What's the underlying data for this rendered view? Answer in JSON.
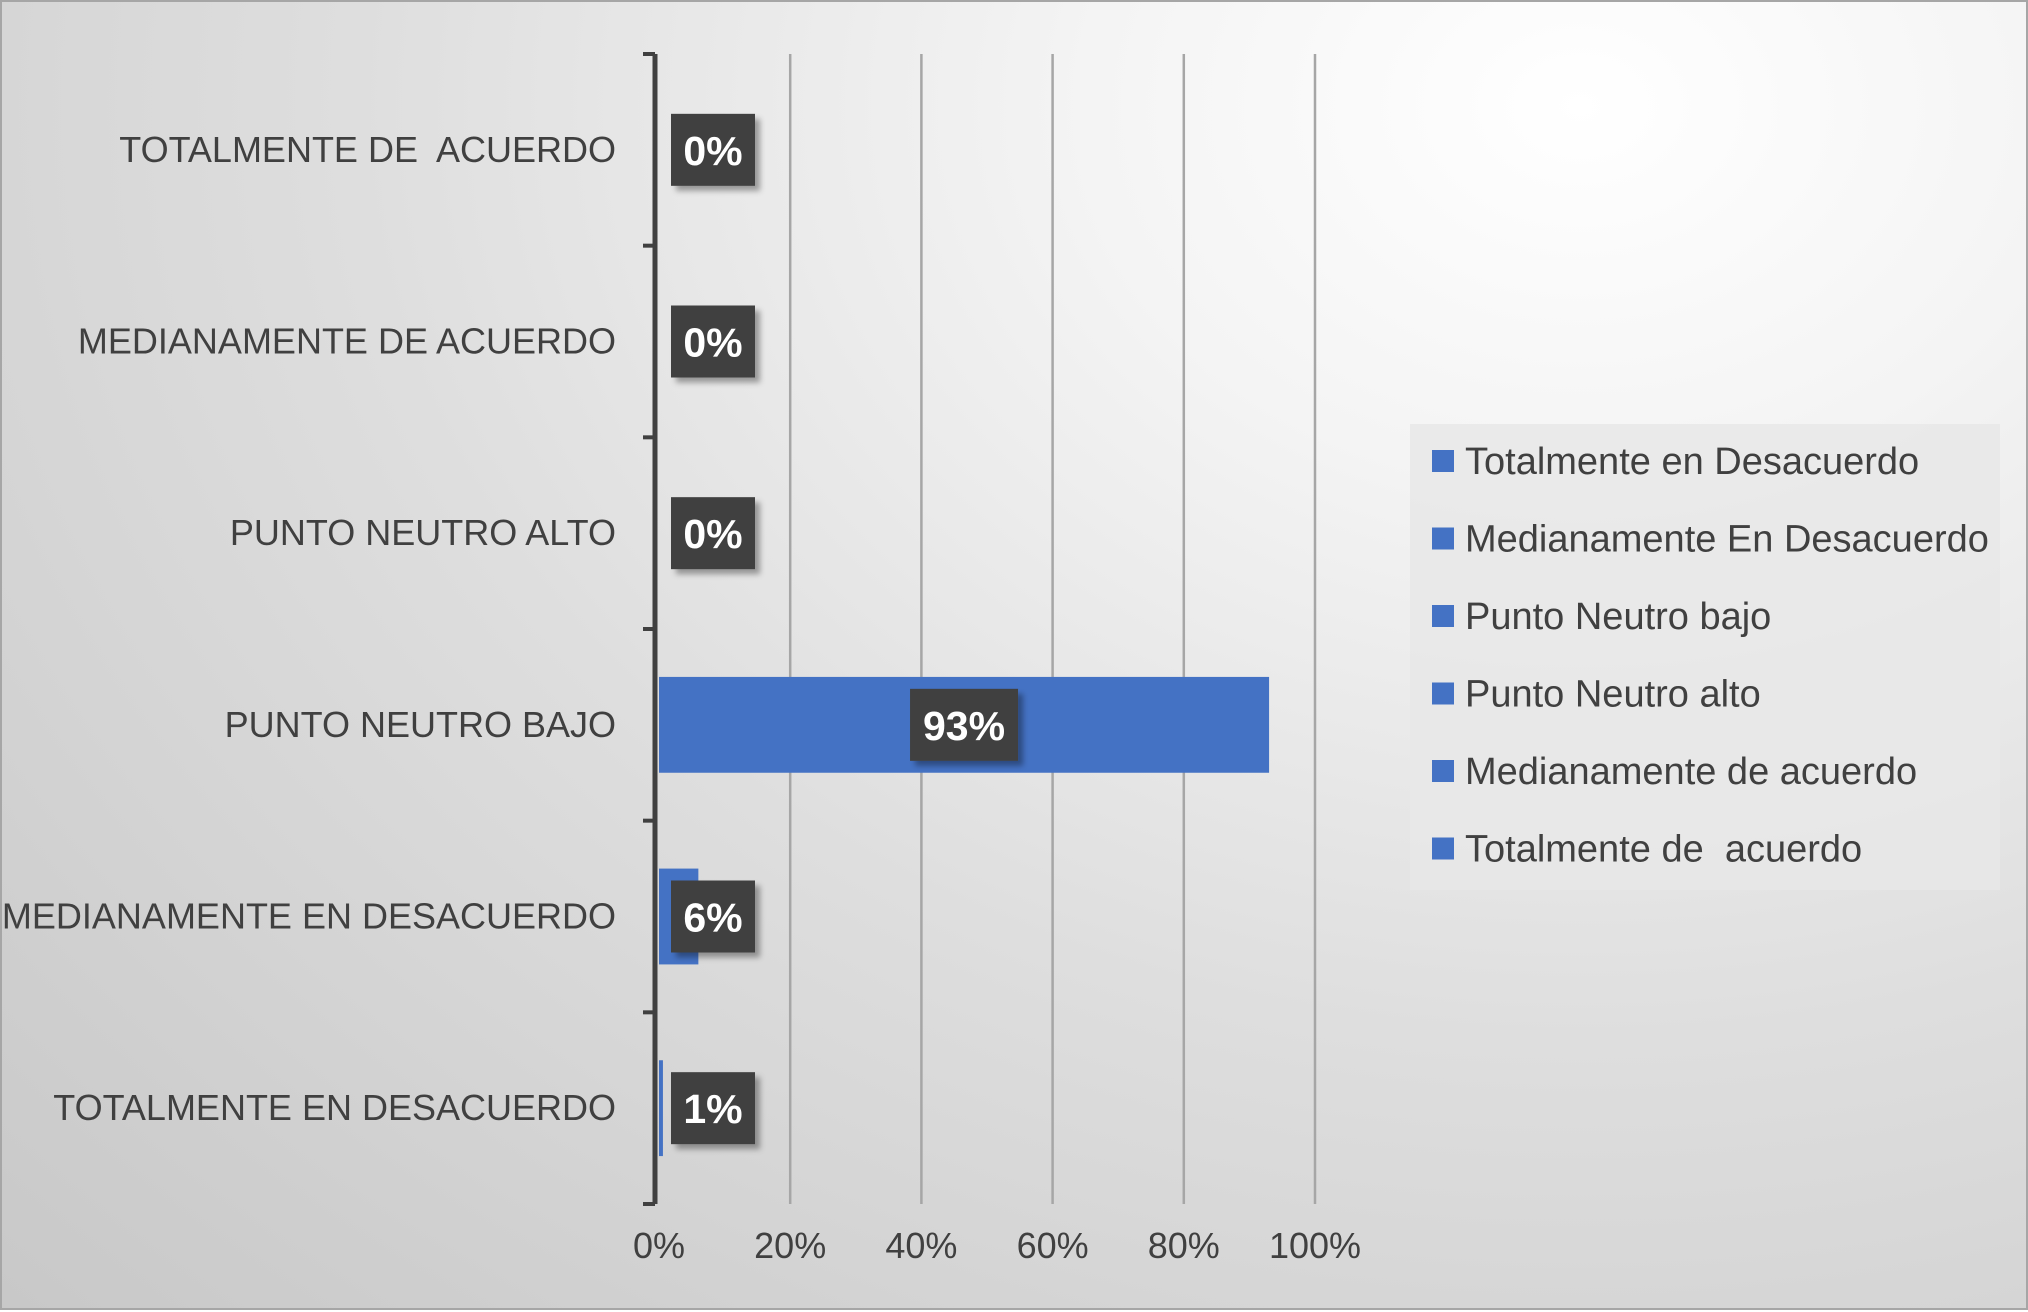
{
  "chart_data": {
    "type": "bar",
    "orientation": "horizontal",
    "categories": [
      "TOTALMENTE EN DESACUERDO",
      "MEDIANAMENTE EN DESACUERDO",
      "PUNTO NEUTRO BAJO",
      "PUNTO NEUTRO ALTO",
      "MEDIANAMENTE DE ACUERDO",
      "TOTALMENTE DE  ACUERDO"
    ],
    "values": [
      0.6,
      6,
      93,
      0,
      0,
      0
    ],
    "data_labels": [
      "1%",
      "6%",
      "93%",
      "0%",
      "0%",
      "0%"
    ],
    "xlim": [
      0,
      100
    ],
    "x_ticks": [
      "0%",
      "20%",
      "40%",
      "60%",
      "80%",
      "100%"
    ],
    "grid": "vertical",
    "title": "",
    "xlabel": "",
    "ylabel": "",
    "legend": {
      "placement": "right",
      "entries": [
        "Totalmente en Desacuerdo",
        "Medianamente En Desacuerdo",
        "Punto Neutro bajo",
        "Punto Neutro alto",
        "Medianamente de acuerdo",
        "Totalmente de  acuerdo"
      ]
    },
    "colors": {
      "bar": "#4472C4",
      "data_label_bg": "#404040",
      "grid": "#a6a6a6",
      "axis": "#404040",
      "legend_bg": "#e8e8e8"
    }
  }
}
